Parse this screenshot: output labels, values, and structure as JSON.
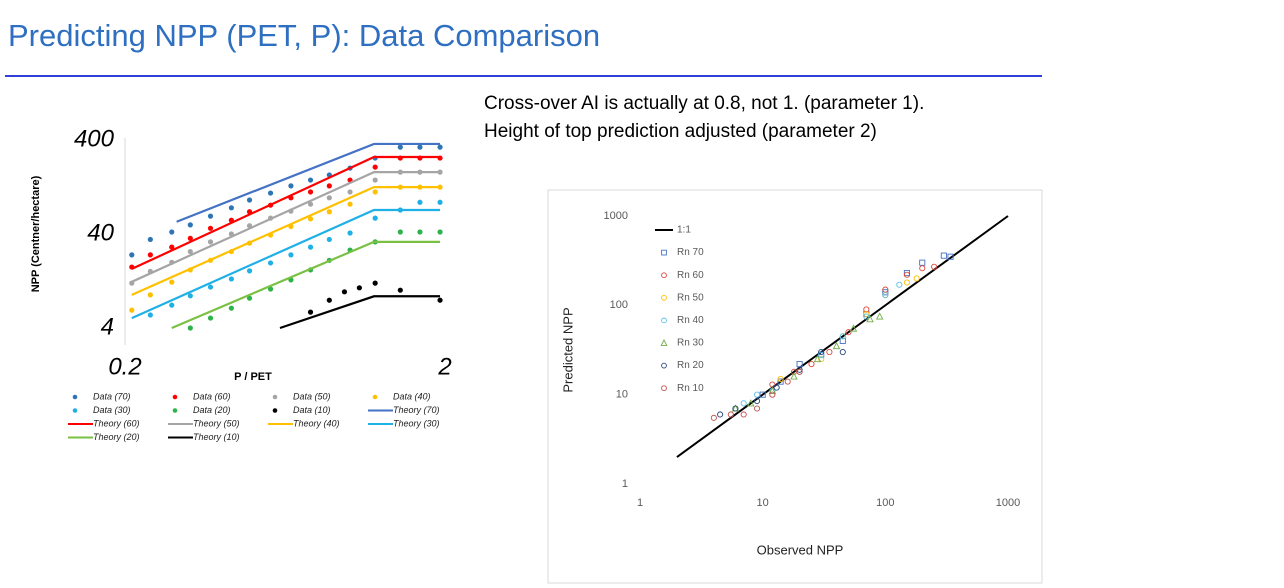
{
  "header": {
    "title": "Predicting NPP (PET, P): Data Comparison"
  },
  "notes": [
    "Cross-over AI is actually at 0.8, not 1. (parameter 1).",
    "Height of top prediction adjusted (parameter 2)"
  ],
  "chart_data": [
    {
      "type": "scatter",
      "log_scale": true,
      "x_label": "P / PET",
      "y_label": "NPP (Centner/hectare)",
      "xlim": [
        0.2,
        2
      ],
      "ylim": [
        4,
        400
      ],
      "xticks": [
        {
          "value": 0.2,
          "label": "0.2"
        },
        2
      ],
      "yticks": [
        4,
        40,
        400
      ],
      "series": [
        {
          "name": "Data (70)",
          "mode": "markers",
          "color": "#2e75b6",
          "x": [
            0.21,
            0.24,
            0.28,
            0.32,
            0.37,
            0.43,
            0.49,
            0.57,
            0.66,
            0.76,
            0.87,
            1.01,
            1.21,
            1.45,
            1.67,
            1.93
          ],
          "values": [
            24,
            35,
            42,
            50,
            62,
            76,
            92,
            109,
            130,
            150,
            170,
            201,
            257,
            336,
            336,
            336
          ]
        },
        {
          "name": "Data (60)",
          "mode": "markers",
          "color": "#ff0000",
          "x": [
            0.21,
            0.24,
            0.28,
            0.32,
            0.37,
            0.43,
            0.49,
            0.57,
            0.66,
            0.76,
            0.87,
            1.01,
            1.21,
            1.45,
            1.67,
            1.93
          ],
          "values": [
            17.8,
            24,
            29,
            36,
            46,
            56,
            69,
            81,
            97,
            112,
            130,
            150,
            206,
            257,
            257,
            257
          ]
        },
        {
          "name": "Data (50)",
          "mode": "markers",
          "color": "#a5a5a5",
          "x": [
            0.21,
            0.24,
            0.28,
            0.32,
            0.37,
            0.43,
            0.49,
            0.57,
            0.66,
            0.76,
            0.87,
            1.01,
            1.21,
            1.45,
            1.67,
            1.93
          ],
          "values": [
            12,
            16,
            20,
            26,
            33,
            40,
            49,
            59,
            70,
            83,
            97,
            112,
            150,
            182,
            182,
            182
          ]
        },
        {
          "name": "Data (40)",
          "mode": "markers",
          "color": "#ffc000",
          "x": [
            0.21,
            0.24,
            0.28,
            0.32,
            0.37,
            0.43,
            0.49,
            0.57,
            0.66,
            0.76,
            0.87,
            1.01,
            1.21,
            1.45,
            1.67,
            1.93
          ],
          "values": [
            6.2,
            9,
            12.3,
            16.6,
            21,
            26,
            32,
            39,
            48,
            58,
            69,
            83,
            112,
            126,
            126,
            126
          ]
        },
        {
          "name": "Data (30)",
          "mode": "markers",
          "color": "#1fb0e6",
          "x": [
            0.24,
            0.28,
            0.32,
            0.37,
            0.43,
            0.49,
            0.57,
            0.66,
            0.76,
            0.87,
            1.01,
            1.21,
            1.45,
            1.67,
            1.93
          ],
          "values": [
            5.5,
            7,
            8.8,
            10.9,
            13.3,
            16.2,
            19.7,
            24,
            29,
            35,
            41,
            59,
            72,
            87,
            87
          ]
        },
        {
          "name": "Data (20)",
          "mode": "markers",
          "color": "#2db34a",
          "x": [
            0.32,
            0.37,
            0.43,
            0.49,
            0.57,
            0.66,
            0.76,
            0.87,
            1.01,
            1.21,
            1.45,
            1.67,
            1.93
          ],
          "values": [
            4,
            5.1,
            6.5,
            8.3,
            10.4,
            13,
            16.6,
            21,
            27,
            33,
            42,
            42,
            42
          ]
        },
        {
          "name": "Data (10)",
          "mode": "markers",
          "color": "#000000",
          "x": [
            0.76,
            0.87,
            0.97,
            1.08,
            1.21,
            1.45,
            1.93
          ],
          "values": [
            5.9,
            7.9,
            9.7,
            10.7,
            12,
            10.1,
            7.9
          ]
        },
        {
          "name": "Theory (70)",
          "mode": "line",
          "color": "#4472c4",
          "x": [
            0.29,
            1.2,
            1.93
          ],
          "values": [
            54,
            363,
            363
          ]
        },
        {
          "name": "Theory (60)",
          "mode": "line",
          "color": "#ff0000",
          "x": [
            0.21,
            1.2,
            1.93
          ],
          "values": [
            17,
            264,
            264
          ]
        },
        {
          "name": "Theory (50)",
          "mode": "line",
          "color": "#a5a5a5",
          "x": [
            0.21,
            1.2,
            1.93
          ],
          "values": [
            12.4,
            182,
            182
          ]
        },
        {
          "name": "Theory (40)",
          "mode": "line",
          "color": "#ffc000",
          "x": [
            0.21,
            1.2,
            1.93
          ],
          "values": [
            9,
            126,
            126
          ]
        },
        {
          "name": "Theory (30)",
          "mode": "line",
          "color": "#1fb0e6",
          "x": [
            0.21,
            1.2,
            1.93
          ],
          "values": [
            5.1,
            72,
            72
          ]
        },
        {
          "name": "Theory (20)",
          "mode": "line",
          "color": "#7ac143",
          "x": [
            0.28,
            1.2,
            1.93
          ],
          "values": [
            4,
            33,
            33
          ]
        },
        {
          "name": "Theory (10)",
          "mode": "line",
          "color": "#000000",
          "x": [
            0.61,
            1.2,
            1.93
          ],
          "values": [
            4,
            8.7,
            8.7
          ]
        }
      ]
    },
    {
      "type": "scatter",
      "log_scale": true,
      "hollow_markers": true,
      "x_label": "Observed NPP",
      "y_label": "Predicted NPP",
      "xlim": [
        1,
        1000
      ],
      "ylim": [
        1,
        1000
      ],
      "xticks": [
        1,
        10,
        100,
        1000
      ],
      "yticks": [
        1,
        10,
        100,
        1000
      ],
      "series": [
        {
          "name": "1:1",
          "mode": "line",
          "color": "#000000",
          "x": [
            2,
            1000
          ],
          "values": [
            2,
            1000
          ]
        },
        {
          "name": "Rn 70",
          "mode": "markers",
          "marker": "square",
          "color": "#4472c4",
          "x": [
            10,
            14,
            20,
            30,
            45,
            70,
            100,
            150,
            200,
            300,
            340
          ],
          "values": [
            10,
            14,
            22,
            28,
            40,
            80,
            140,
            230,
            300,
            360,
            350
          ]
        },
        {
          "name": "Rn 60",
          "mode": "markers",
          "marker": "circle",
          "color": "#e0453a",
          "x": [
            12,
            18,
            25,
            35,
            50,
            70,
            100,
            150,
            200,
            250
          ],
          "values": [
            13,
            18,
            22,
            30,
            50,
            90,
            150,
            220,
            260,
            270
          ]
        },
        {
          "name": "Rn 50",
          "mode": "markers",
          "marker": "circle",
          "color": "#ffc000",
          "x": [
            14,
            20,
            30,
            45,
            70,
            100,
            150,
            180
          ],
          "values": [
            15,
            18,
            25,
            45,
            80,
            130,
            180,
            200
          ]
        },
        {
          "name": "Rn 40",
          "mode": "markers",
          "marker": "circle",
          "color": "#5bc0eb",
          "x": [
            7,
            9,
            12,
            20,
            30,
            45,
            70,
            100,
            130
          ],
          "values": [
            8,
            10,
            11,
            18,
            28,
            45,
            75,
            130,
            170
          ]
        },
        {
          "name": "Rn 30",
          "mode": "markers",
          "marker": "triangle",
          "color": "#70ad47",
          "x": [
            6,
            8,
            12,
            18,
            28,
            40,
            55,
            75,
            90
          ],
          "values": [
            7,
            8,
            11,
            16,
            25,
            35,
            55,
            70,
            75
          ]
        },
        {
          "name": "Rn 20",
          "mode": "markers",
          "marker": "circle",
          "color": "#264478",
          "x": [
            4.5,
            6,
            9,
            13,
            20,
            30,
            45
          ],
          "values": [
            6,
            7,
            8.5,
            12,
            19,
            30,
            30
          ]
        },
        {
          "name": "Rn 10",
          "mode": "markers",
          "marker": "circle",
          "color": "#c0504d",
          "x": [
            4,
            5.5,
            7,
            9,
            12,
            16,
            20
          ],
          "values": [
            5.5,
            6,
            6,
            7,
            10,
            14,
            18
          ]
        }
      ]
    }
  ]
}
